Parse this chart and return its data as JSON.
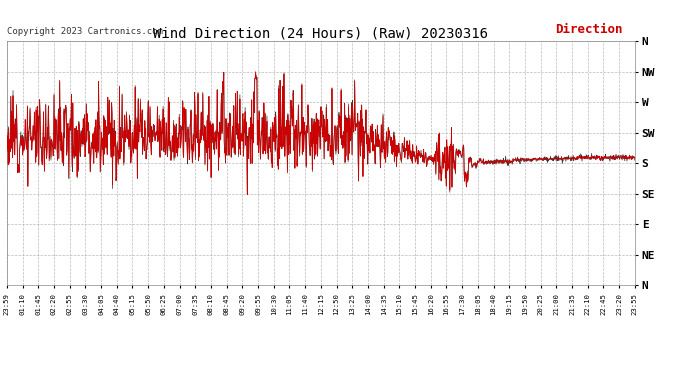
{
  "title": "Wind Direction (24 Hours) (Raw) 20230316",
  "copyright": "Copyright 2023 Cartronics.com",
  "legend_label": "Direction",
  "legend_color": "#cc0000",
  "line_color_red": "#cc0000",
  "line_color_dark": "#333333",
  "background_color": "#ffffff",
  "grid_color": "#aaaaaa",
  "ytick_labels": [
    "N",
    "NW",
    "W",
    "SW",
    "S",
    "SE",
    "E",
    "NE",
    "N"
  ],
  "ytick_values": [
    360,
    315,
    270,
    225,
    180,
    135,
    90,
    45,
    0
  ],
  "ylim_min": 0,
  "ylim_max": 360,
  "xtick_labels": [
    "23:59",
    "01:10",
    "01:45",
    "02:20",
    "02:55",
    "03:30",
    "04:05",
    "04:40",
    "05:15",
    "05:50",
    "06:25",
    "07:00",
    "07:35",
    "08:10",
    "08:45",
    "09:20",
    "09:55",
    "10:30",
    "11:05",
    "11:40",
    "12:15",
    "12:50",
    "13:25",
    "14:00",
    "14:35",
    "15:10",
    "15:45",
    "16:20",
    "16:55",
    "17:30",
    "18:05",
    "18:40",
    "19:15",
    "19:50",
    "20:25",
    "21:00",
    "21:35",
    "22:10",
    "22:45",
    "23:20",
    "23:55"
  ],
  "n_points": 1440,
  "seed": 12
}
